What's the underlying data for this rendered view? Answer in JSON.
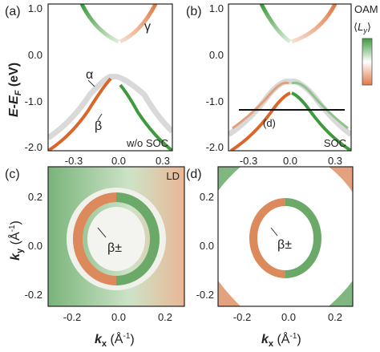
{
  "panels": {
    "a": {
      "label": "(a)",
      "corner_text": "w/o SOC",
      "bands": {
        "alpha": "α",
        "beta": "β",
        "gamma": "γ"
      }
    },
    "b": {
      "label": "(b)",
      "corner_text": "SOC",
      "cut_label": "(d)"
    },
    "c": {
      "label": "(c)",
      "corner_text": "LD",
      "band": "β±"
    },
    "d": {
      "label": "(d)",
      "band": "β±"
    }
  },
  "top_axes": {
    "ylabel_main": "E-E",
    "ylabel_sub": "F",
    "ylabel_unit": " (eV)",
    "y_ticks": [
      "1.0",
      "0.0",
      "-1.0",
      "-2.0"
    ],
    "x_ticks": [
      "-0.3",
      "0.0",
      "0.3"
    ]
  },
  "bottom_axes": {
    "ylabel_k": "k",
    "ylabel_sub": "y",
    "ylabel_unit": " (Å",
    "ylabel_exp": "-1",
    "ylabel_close": ")",
    "xlabel_k": "k",
    "xlabel_sub": "x",
    "y_ticks": [
      "0.2",
      "0.0",
      "-0.2"
    ],
    "x_ticks": [
      "-0.2",
      "0.0",
      "0.2"
    ]
  },
  "colorbar": {
    "title": "OAM",
    "quantity": "L",
    "quantity_sub": "y",
    "colors": {
      "top": "#3d9a3d",
      "mid": "#ffffff",
      "bottom": "#e07a45"
    }
  },
  "chart_data": [
    {
      "type": "line",
      "panel": "a",
      "xlim": [
        -0.4,
        0.4
      ],
      "ylim": [
        -2.0,
        1.0
      ],
      "series": [
        {
          "x": [
            -0.36,
            -0.24,
            -0.12,
            0.0,
            0.12,
            0.24,
            0.36
          ],
          "y": [
            -1.55,
            -1.18,
            -0.7,
            -0.5,
            -0.7,
            -1.18,
            -1.55
          ]
        },
        {
          "x": [
            -0.12,
            -0.06,
            0.0,
            0.06,
            0.12
          ],
          "y": [
            1.0,
            0.45,
            0.25,
            0.45,
            1.0
          ]
        }
      ]
    },
    {
      "type": "line",
      "panel": "b",
      "xlim": [
        -0.4,
        0.4
      ],
      "ylim": [
        -2.0,
        1.0
      ],
      "cut_energy": -1.2,
      "cut_kx": [
        -0.3,
        0.3
      ],
      "series": [
        {
          "x": [
            -0.36,
            -0.24,
            -0.12,
            0.0,
            0.12,
            0.24,
            0.36
          ],
          "y": [
            -1.5,
            -1.15,
            -0.72,
            -0.62,
            -0.72,
            -1.15,
            -1.5
          ]
        },
        {
          "x": [
            -0.36,
            -0.24,
            -0.12,
            0.0,
            0.12,
            0.24,
            0.36
          ],
          "y": [
            -1.65,
            -1.3,
            -0.85,
            -0.7,
            -0.85,
            -1.3,
            -1.65
          ]
        },
        {
          "x": [
            -0.12,
            -0.06,
            0.0,
            0.06,
            0.12
          ],
          "y": [
            1.0,
            0.45,
            0.25,
            0.45,
            1.0
          ]
        }
      ]
    },
    {
      "type": "heatmap",
      "panel": "c",
      "xlim": [
        -0.25,
        0.25
      ],
      "ylim": [
        -0.25,
        0.25
      ]
    },
    {
      "type": "heatmap",
      "panel": "d",
      "xlim": [
        -0.25,
        0.25
      ],
      "ylim": [
        -0.25,
        0.25
      ]
    }
  ]
}
